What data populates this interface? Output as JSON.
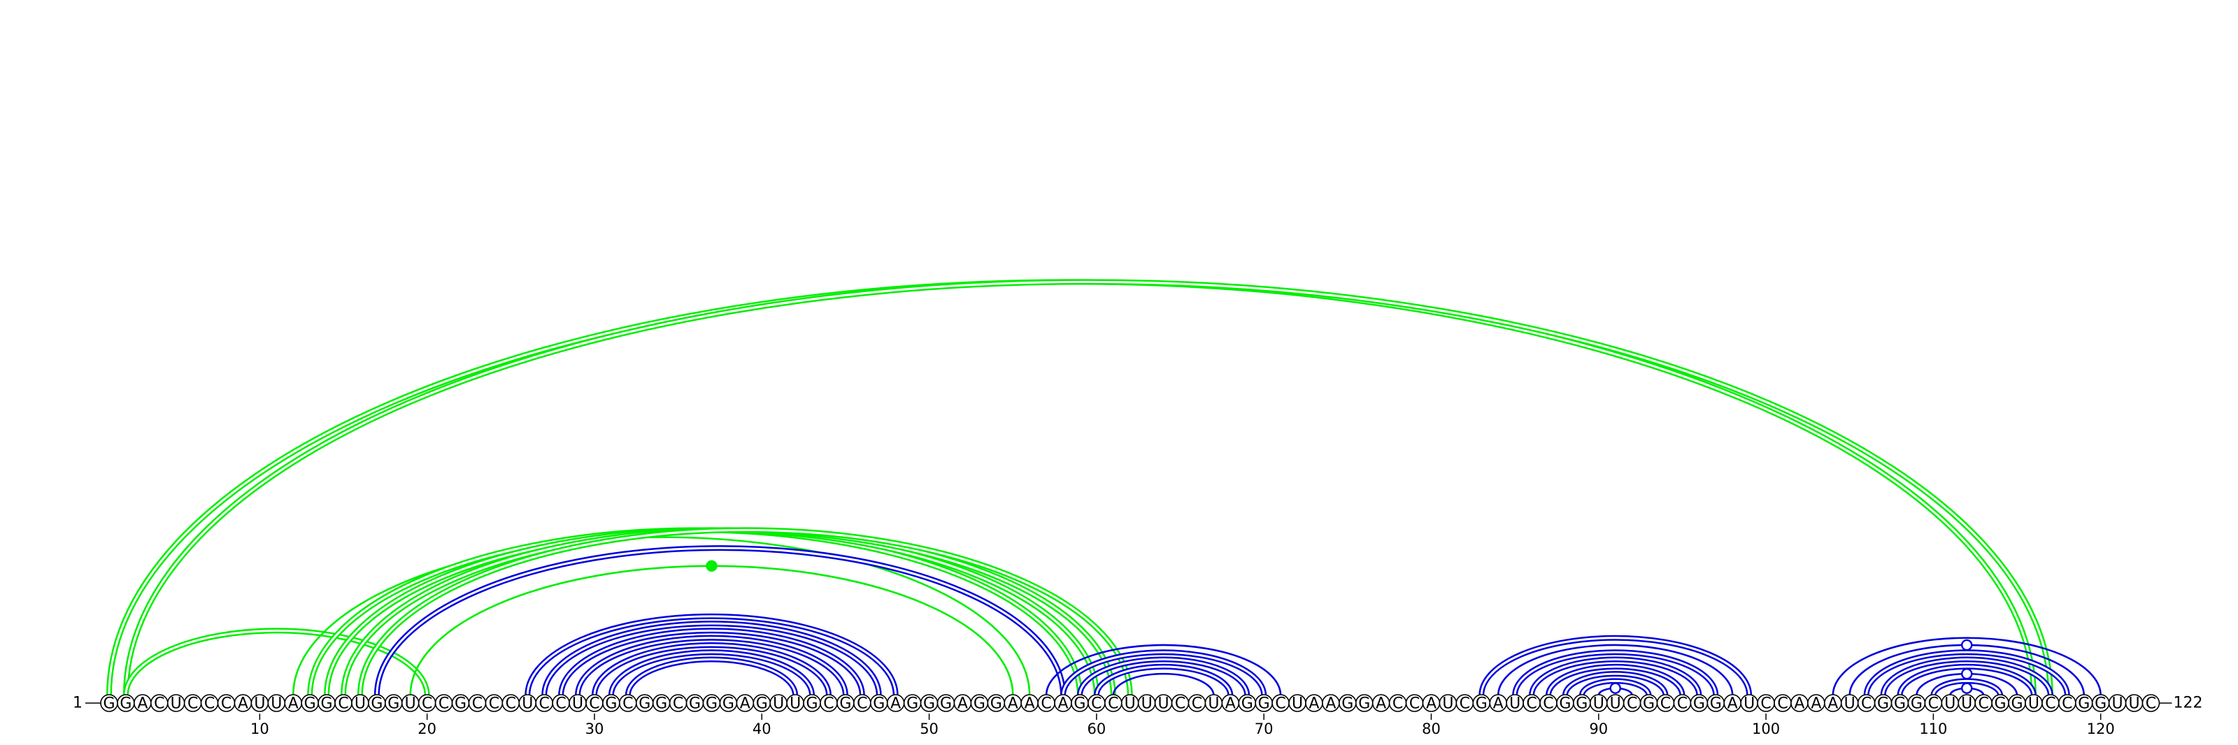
{
  "diagram": {
    "type": "rna-arc-diagram",
    "sequence": "GGACUCCCAUUAGGCUGGUCCGCCCUCCUCGCGGCGGGAGUUGCGCGAGGGAGGAACAGCCUUUCCUAGGCUAAGGACCAUCGAUCCGGUUCGCCGGAUCCAAAUCGGGCUUCGGUCCGGUUC",
    "length": 122,
    "start_label": "1",
    "end_label": "122",
    "tick_labels": [
      "10",
      "20",
      "30",
      "40",
      "50",
      "60",
      "70",
      "80",
      "90",
      "100",
      "110",
      "120"
    ],
    "colors": {
      "green": "#00ee00",
      "blue": "#0000dd",
      "ink": "#000000"
    },
    "arcs": [
      {
        "i": 1,
        "j": 116,
        "color": "green",
        "style": "double"
      },
      {
        "i": 2,
        "j": 117,
        "color": "green",
        "style": "double"
      },
      {
        "i": 2,
        "j": 20,
        "color": "green",
        "style": "double"
      },
      {
        "i": 12,
        "j": 56,
        "color": "green",
        "style": "single"
      },
      {
        "i": 13,
        "j": 59,
        "color": "green",
        "style": "double"
      },
      {
        "i": 14,
        "j": 60,
        "color": "green",
        "style": "double"
      },
      {
        "i": 15,
        "j": 61,
        "color": "green",
        "style": "double"
      },
      {
        "i": 16,
        "j": 62,
        "color": "green",
        "style": "double"
      },
      {
        "i": 17,
        "j": 58,
        "color": "blue",
        "style": "double"
      },
      {
        "i": 19,
        "j": 55,
        "color": "green",
        "style": "single",
        "marker": "filled"
      },
      {
        "i": 26,
        "j": 48,
        "color": "blue",
        "style": "double"
      },
      {
        "i": 27,
        "j": 47,
        "color": "blue",
        "style": "double"
      },
      {
        "i": 28,
        "j": 46,
        "color": "blue",
        "style": "double"
      },
      {
        "i": 29,
        "j": 45,
        "color": "blue",
        "style": "double"
      },
      {
        "i": 30,
        "j": 44,
        "color": "blue",
        "style": "double"
      },
      {
        "i": 31,
        "j": 43,
        "color": "blue",
        "style": "double"
      },
      {
        "i": 32,
        "j": 42,
        "color": "blue",
        "style": "double"
      },
      {
        "i": 57,
        "j": 71,
        "color": "blue",
        "style": "single"
      },
      {
        "i": 58,
        "j": 70,
        "color": "blue",
        "style": "double"
      },
      {
        "i": 59,
        "j": 69,
        "color": "blue",
        "style": "double"
      },
      {
        "i": 60,
        "j": 68,
        "color": "blue",
        "style": "double"
      },
      {
        "i": 61,
        "j": 67,
        "color": "blue",
        "style": "single"
      },
      {
        "i": 83,
        "j": 99,
        "color": "blue",
        "style": "double"
      },
      {
        "i": 84,
        "j": 98,
        "color": "blue",
        "style": "single"
      },
      {
        "i": 85,
        "j": 97,
        "color": "blue",
        "style": "double"
      },
      {
        "i": 86,
        "j": 96,
        "color": "blue",
        "style": "double"
      },
      {
        "i": 87,
        "j": 95,
        "color": "blue",
        "style": "double"
      },
      {
        "i": 88,
        "j": 94,
        "color": "blue",
        "style": "double"
      },
      {
        "i": 89,
        "j": 93,
        "color": "blue",
        "style": "double"
      },
      {
        "i": 90,
        "j": 92,
        "color": "blue",
        "style": "single",
        "marker": "open"
      },
      {
        "i": 104,
        "j": 120,
        "color": "blue",
        "style": "single"
      },
      {
        "i": 105,
        "j": 119,
        "color": "blue",
        "style": "single",
        "marker": "open"
      },
      {
        "i": 106,
        "j": 118,
        "color": "blue",
        "style": "double"
      },
      {
        "i": 107,
        "j": 117,
        "color": "blue",
        "style": "double"
      },
      {
        "i": 108,
        "j": 116,
        "color": "blue",
        "style": "double"
      },
      {
        "i": 109,
        "j": 115,
        "color": "blue",
        "style": "single",
        "marker": "open"
      },
      {
        "i": 110,
        "j": 114,
        "color": "blue",
        "style": "double"
      },
      {
        "i": 111,
        "j": 113,
        "color": "blue",
        "style": "single",
        "marker": "open"
      }
    ]
  }
}
